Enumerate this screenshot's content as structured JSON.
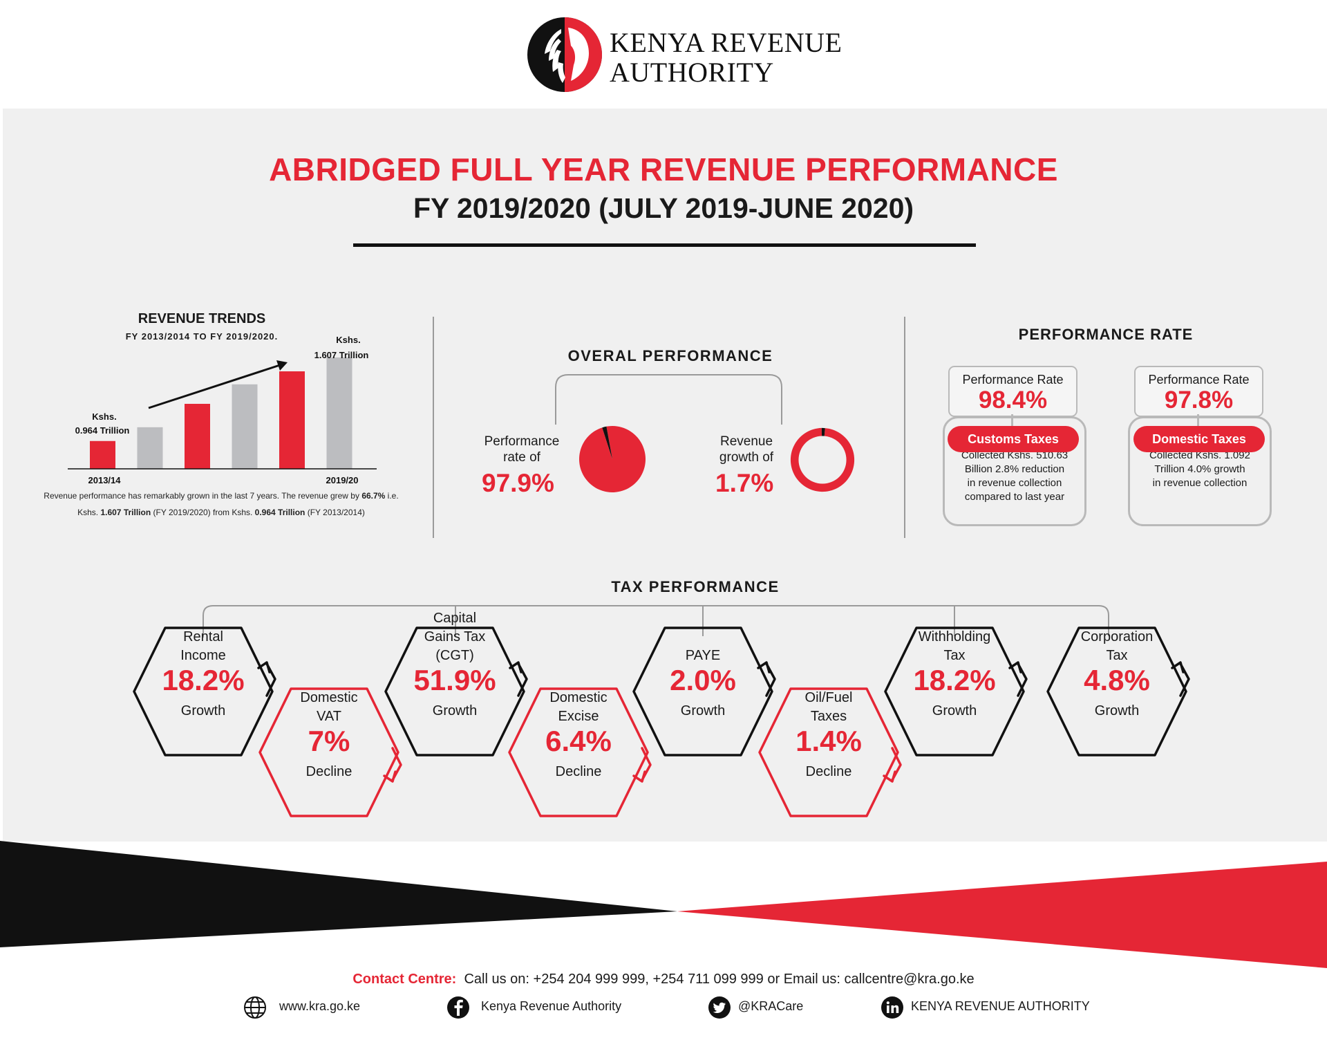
{
  "brand": {
    "line1": "KENYA REVENUE",
    "line2": "AUTHORITY",
    "red": "#e52635",
    "black": "#111111"
  },
  "title": {
    "main": "ABRIDGED FULL YEAR REVENUE PERFORMANCE",
    "sub": "FY 2019/2020 (JULY 2019-JUNE 2020)"
  },
  "revenue_trends": {
    "heading": "REVENUE TRENDS",
    "subheading": "FY 2013/2014 TO FY 2019/2020.",
    "first_label_1": "Kshs.",
    "first_label_2": "0.964 Trillion",
    "last_label_1": "Kshs.",
    "last_label_2": "1.607 Trillion",
    "x_first": "2013/14",
    "x_last": "2019/20",
    "note_1_a": "Revenue performance has remarkably grown in the last 7 years. The revenue grew by ",
    "note_1_b": "66.7%",
    "note_1_c": " i.e.",
    "note_2_a": "Kshs. ",
    "note_2_b": "1.607 Trillion",
    "note_2_c": " (FY 2019/2020) from Kshs. ",
    "note_2_d": "0.964 Trillion",
    "note_2_e": " (FY 2013/2014)"
  },
  "chart_data": [
    {
      "type": "bar",
      "title": "REVENUE TRENDS",
      "subtitle": "FY 2013/2014 TO FY 2019/2020.",
      "categories": [
        "2013/14",
        "",
        "",
        "",
        "",
        "2019/20"
      ],
      "values": [
        0.964,
        1.07,
        1.25,
        1.4,
        1.5,
        1.607
      ],
      "colors": [
        "#e52635",
        "#bcbdc0",
        "#e52635",
        "#bcbdc0",
        "#e52635",
        "#bcbdc0"
      ],
      "ylim": [
        0.75,
        1.75
      ],
      "grid": false
    },
    {
      "type": "pie",
      "title": "Performance rate of",
      "slices": [
        {
          "value": 97.9,
          "color": "#e52635"
        },
        {
          "value": 2.1,
          "color": "#111111"
        }
      ]
    },
    {
      "type": "pie",
      "title": "Revenue growth of",
      "donut": true,
      "slices": [
        {
          "value": 98.3,
          "color": "#e52635"
        },
        {
          "value": 1.7,
          "color": "#111111"
        }
      ]
    }
  ],
  "overall": {
    "heading": "OVERAL PERFORMANCE",
    "perf_label_1": "Performance",
    "perf_label_2": "rate of",
    "perf_value": "97.9%",
    "growth_label_1": "Revenue",
    "growth_label_2": "growth of",
    "growth_value": "1.7%"
  },
  "performance_rate": {
    "heading": "PERFORMANCE RATE",
    "customs": {
      "box_label": "Performance Rate",
      "box_value": "98.4%",
      "pill": "Customs Taxes",
      "desc": [
        "Collected Kshs. 510.63",
        "Billion 2.8% reduction",
        "in revenue collection",
        "compared to last year"
      ]
    },
    "domestic": {
      "box_label": "Performance Rate",
      "box_value": "97.8%",
      "pill": "Domestic Taxes",
      "desc": [
        "Collected Kshs. 1.092",
        "Trillion 4.0% growth",
        "in revenue collection"
      ]
    }
  },
  "tax": {
    "heading": "TAX PERFORMANCE",
    "items": [
      {
        "label": [
          "Rental",
          "Income"
        ],
        "value": "18.2%",
        "note": "Growth",
        "kind": "growth"
      },
      {
        "label": [
          "Domestic",
          "VAT"
        ],
        "value": "7%",
        "note": "Decline",
        "kind": "decline"
      },
      {
        "label": [
          "Capital",
          "Gains Tax",
          "(CGT)"
        ],
        "value": "51.9%",
        "note": "Growth",
        "kind": "growth"
      },
      {
        "label": [
          "Domestic",
          "Excise"
        ],
        "value": "6.4%",
        "note": "Decline",
        "kind": "decline"
      },
      {
        "label": [
          "PAYE"
        ],
        "value": "2.0%",
        "note": "Growth",
        "kind": "growth"
      },
      {
        "label": [
          "Oil/Fuel",
          "Taxes"
        ],
        "value": "1.4%",
        "note": "Decline",
        "kind": "decline"
      },
      {
        "label": [
          "Withholding",
          "Tax"
        ],
        "value": "18.2%",
        "note": "Growth",
        "kind": "growth"
      },
      {
        "label": [
          "Corporation",
          "Tax"
        ],
        "value": "4.8%",
        "note": "Growth",
        "kind": "growth"
      }
    ]
  },
  "contact": {
    "label": "Contact Centre:",
    "text": "Call us on: +254 204 999 999, +254 711 099 999 or Email us: callcentre@kra.go.ke"
  },
  "social": [
    {
      "icon": "globe-icon",
      "text": "www.kra.go.ke"
    },
    {
      "icon": "facebook-icon",
      "text": "Kenya Revenue Authority"
    },
    {
      "icon": "twitter-icon",
      "text": "@KRACare"
    },
    {
      "icon": "linkedin-icon",
      "text": "KENYA REVENUE AUTHORITY"
    }
  ]
}
